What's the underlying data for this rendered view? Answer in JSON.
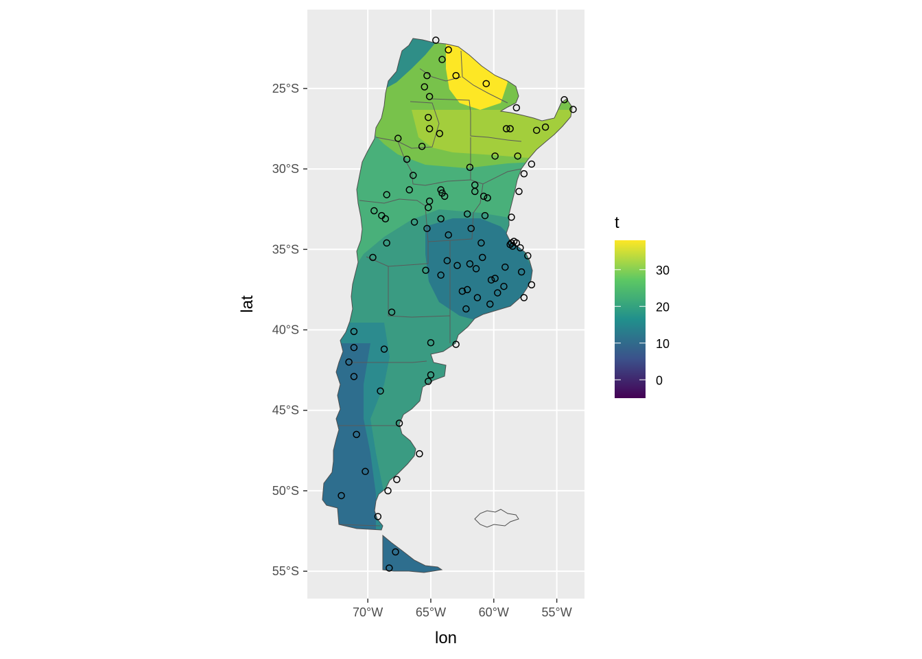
{
  "plot": {
    "x_title": "lon",
    "y_title": "lat",
    "panel_bg": "#EBEBEB",
    "grid_color": "#FFFFFF"
  },
  "axes": {
    "x_ticks": [
      {
        "value": -70,
        "label": "70°W"
      },
      {
        "value": -65,
        "label": "65°W"
      },
      {
        "value": -60,
        "label": "60°W"
      },
      {
        "value": -55,
        "label": "55°W"
      }
    ],
    "y_ticks": [
      {
        "value": -25,
        "label": "25°S"
      },
      {
        "value": -30,
        "label": "30°S"
      },
      {
        "value": -35,
        "label": "35°S"
      },
      {
        "value": -40,
        "label": "40°S"
      },
      {
        "value": -45,
        "label": "45°S"
      },
      {
        "value": -50,
        "label": "50°S"
      },
      {
        "value": -55,
        "label": "55°S"
      }
    ],
    "xlim": [
      -74.8,
      -52.8
    ],
    "ylim": [
      -56.7,
      -20.1
    ]
  },
  "legend": {
    "title": "t",
    "range": [
      -5,
      38
    ],
    "ticks": [
      {
        "value": 0,
        "label": "0"
      },
      {
        "value": 10,
        "label": "10"
      },
      {
        "value": 20,
        "label": "20"
      },
      {
        "value": 30,
        "label": "30"
      }
    ],
    "palette": [
      "#440154",
      "#3B528B",
      "#21908C",
      "#5DC863",
      "#FDE725"
    ]
  },
  "chart_data": {
    "type": "map",
    "variable": "t",
    "stations": [
      [
        -64.6,
        -22.0
      ],
      [
        -63.6,
        -22.6
      ],
      [
        -64.1,
        -23.2
      ],
      [
        -63.0,
        -24.2
      ],
      [
        -60.6,
        -24.7
      ],
      [
        -65.3,
        -24.2
      ],
      [
        -65.5,
        -24.9
      ],
      [
        -65.1,
        -25.5
      ],
      [
        -58.2,
        -26.2
      ],
      [
        -54.4,
        -25.7
      ],
      [
        -53.7,
        -26.3
      ],
      [
        -65.2,
        -26.8
      ],
      [
        -65.1,
        -27.5
      ],
      [
        -64.3,
        -27.8
      ],
      [
        -59.0,
        -27.5
      ],
      [
        -58.7,
        -27.5
      ],
      [
        -56.6,
        -27.6
      ],
      [
        -55.9,
        -27.4
      ],
      [
        -67.6,
        -28.1
      ],
      [
        -65.7,
        -28.6
      ],
      [
        -59.9,
        -29.2
      ],
      [
        -58.1,
        -29.2
      ],
      [
        -57.0,
        -29.7
      ],
      [
        -66.9,
        -29.4
      ],
      [
        -61.9,
        -29.9
      ],
      [
        -57.6,
        -30.3
      ],
      [
        -66.4,
        -30.4
      ],
      [
        -61.5,
        -31.0
      ],
      [
        -64.2,
        -31.3
      ],
      [
        -66.7,
        -31.3
      ],
      [
        -61.5,
        -31.4
      ],
      [
        -64.1,
        -31.5
      ],
      [
        -63.9,
        -31.7
      ],
      [
        -60.8,
        -31.7
      ],
      [
        -60.5,
        -31.8
      ],
      [
        -58.0,
        -31.4
      ],
      [
        -68.5,
        -31.6
      ],
      [
        -65.1,
        -32.0
      ],
      [
        -65.2,
        -32.4
      ],
      [
        -69.5,
        -32.6
      ],
      [
        -68.9,
        -32.9
      ],
      [
        -68.6,
        -33.1
      ],
      [
        -62.1,
        -32.8
      ],
      [
        -60.7,
        -32.9
      ],
      [
        -58.6,
        -33.0
      ],
      [
        -64.2,
        -33.1
      ],
      [
        -66.3,
        -33.3
      ],
      [
        -61.8,
        -33.7
      ],
      [
        -65.3,
        -33.7
      ],
      [
        -63.6,
        -34.1
      ],
      [
        -61.0,
        -34.6
      ],
      [
        -58.6,
        -34.6
      ],
      [
        -58.5,
        -34.8
      ],
      [
        -58.4,
        -34.5
      ],
      [
        -58.2,
        -34.6
      ],
      [
        -58.7,
        -34.7
      ],
      [
        -57.9,
        -34.9
      ],
      [
        -57.3,
        -35.4
      ],
      [
        -68.5,
        -34.6
      ],
      [
        -69.6,
        -35.5
      ],
      [
        -60.9,
        -35.5
      ],
      [
        -63.7,
        -35.7
      ],
      [
        -61.9,
        -35.9
      ],
      [
        -62.9,
        -36.0
      ],
      [
        -59.1,
        -36.1
      ],
      [
        -65.4,
        -36.3
      ],
      [
        -61.4,
        -36.2
      ],
      [
        -57.8,
        -36.4
      ],
      [
        -64.2,
        -36.6
      ],
      [
        -60.2,
        -36.9
      ],
      [
        -59.9,
        -36.8
      ],
      [
        -57.0,
        -37.2
      ],
      [
        -59.2,
        -37.3
      ],
      [
        -62.1,
        -37.5
      ],
      [
        -62.5,
        -37.6
      ],
      [
        -59.7,
        -37.7
      ],
      [
        -61.3,
        -38.0
      ],
      [
        -57.6,
        -38.0
      ],
      [
        -60.3,
        -38.4
      ],
      [
        -62.2,
        -38.7
      ],
      [
        -68.1,
        -38.9
      ],
      [
        -71.1,
        -40.1
      ],
      [
        -71.1,
        -41.1
      ],
      [
        -65.0,
        -40.8
      ],
      [
        -63.0,
        -40.9
      ],
      [
        -68.7,
        -41.2
      ],
      [
        -71.5,
        -42.0
      ],
      [
        -65.0,
        -42.8
      ],
      [
        -65.2,
        -43.2
      ],
      [
        -71.1,
        -42.9
      ],
      [
        -69.0,
        -43.8
      ],
      [
        -67.5,
        -45.8
      ],
      [
        -70.9,
        -46.5
      ],
      [
        -65.9,
        -47.7
      ],
      [
        -70.2,
        -48.8
      ],
      [
        -67.7,
        -49.3
      ],
      [
        -68.4,
        -50.0
      ],
      [
        -72.1,
        -50.3
      ],
      [
        -69.2,
        -51.6
      ],
      [
        -67.8,
        -53.8
      ],
      [
        -68.3,
        -54.8
      ]
    ]
  }
}
